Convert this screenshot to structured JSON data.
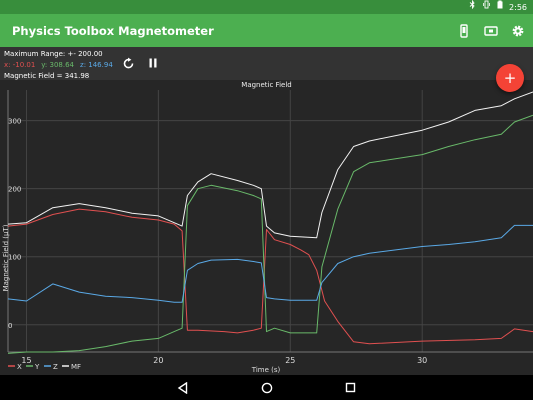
{
  "status": {
    "time": "2:56"
  },
  "appbar": {
    "title": "Physics Toolbox Magnetometer"
  },
  "info": {
    "max_range": "Maximum Range: +- 200.00",
    "x_reading": "x: -10.01",
    "y_reading": "y: 308.64",
    "z_reading": "z: 146.94",
    "magnetic_field": "Magnetic Field = 341.98"
  },
  "fab": {
    "label": "+"
  },
  "icons": {
    "status": [
      "bluetooth-icon",
      "vibrate-icon",
      "battery-icon"
    ],
    "appbar": [
      "phone-icon",
      "camera-icon",
      "settings-gear-icon"
    ],
    "controls": [
      "reset-icon",
      "pause-icon"
    ],
    "nav": [
      "back-icon",
      "home-icon",
      "recents-icon"
    ]
  },
  "colors": {
    "accent": "#4caf50",
    "status_bar": "#388e3c",
    "fab": "#f44336",
    "x": "#e05050",
    "y": "#69b96a",
    "z": "#5aa9e6",
    "mf": "#f2f2f2"
  },
  "chart_data": {
    "type": "line",
    "title": "Magnetic Field",
    "xlabel": "Time (s)",
    "ylabel": "Magnetic Field (µT)",
    "xlim": [
      14.3,
      34.2
    ],
    "ylim": [
      -40,
      345
    ],
    "x_ticks": [
      15,
      20,
      25,
      30
    ],
    "y_ticks": [
      0,
      100,
      200,
      300
    ],
    "grid": true,
    "legend_placement": "bottom-left",
    "legend": [
      "X",
      "Y",
      "Z",
      "MF"
    ],
    "series": [
      {
        "name": "X",
        "color": "#e05050",
        "x": [
          14.3,
          15,
          16,
          17,
          18,
          19,
          20,
          20.6,
          20.9,
          21.1,
          21.5,
          22.5,
          23,
          23.6,
          23.9,
          24.1,
          24.4,
          25,
          25.4,
          25.7,
          26,
          26.3,
          26.8,
          27.4,
          28,
          30,
          32,
          33,
          33.5,
          34.2
        ],
        "values": [
          145,
          148,
          162,
          170,
          166,
          158,
          154,
          148,
          138,
          -8,
          -8,
          -10,
          -12,
          -8,
          -5,
          140,
          125,
          118,
          110,
          103,
          80,
          35,
          5,
          -25,
          -28,
          -24,
          -22,
          -20,
          -6,
          -10
        ]
      },
      {
        "name": "Y",
        "color": "#69b96a",
        "x": [
          14.3,
          15,
          16,
          17,
          18,
          19,
          20,
          20.6,
          20.9,
          21.1,
          21.5,
          22,
          23,
          23.6,
          23.9,
          24.1,
          24.4,
          25,
          26,
          26.2,
          26.8,
          27.4,
          28,
          30,
          31,
          32,
          33,
          33.5,
          34.2
        ],
        "values": [
          -42,
          -40,
          -40,
          -38,
          -32,
          -24,
          -20,
          -10,
          -5,
          175,
          200,
          205,
          197,
          190,
          185,
          -10,
          -5,
          -12,
          -12,
          85,
          170,
          225,
          238,
          250,
          262,
          272,
          280,
          298,
          308
        ]
      },
      {
        "name": "Z",
        "color": "#5aa9e6",
        "x": [
          14.3,
          15,
          16,
          17,
          18,
          19,
          20,
          20.6,
          20.9,
          21.1,
          21.5,
          22,
          23,
          23.6,
          23.9,
          24.1,
          24.4,
          25,
          26,
          26.2,
          26.8,
          27.4,
          28,
          30,
          31,
          32,
          33,
          33.5,
          34.2
        ],
        "values": [
          38,
          35,
          60,
          48,
          42,
          40,
          36,
          33,
          33,
          80,
          90,
          95,
          96,
          93,
          91,
          40,
          38,
          36,
          36,
          62,
          90,
          100,
          105,
          115,
          118,
          122,
          128,
          146,
          146
        ]
      },
      {
        "name": "MF",
        "color": "#f2f2f2",
        "x": [
          14.3,
          15,
          16,
          17,
          18,
          19,
          20,
          20.6,
          20.9,
          21.1,
          21.5,
          22,
          23,
          23.6,
          23.9,
          24.1,
          24.4,
          25,
          26,
          26.2,
          26.8,
          27.4,
          28,
          30,
          31,
          32,
          33,
          33.5,
          34.2
        ],
        "values": [
          148,
          150,
          172,
          178,
          172,
          164,
          160,
          150,
          145,
          190,
          210,
          222,
          212,
          205,
          200,
          145,
          135,
          130,
          128,
          165,
          228,
          262,
          270,
          286,
          298,
          315,
          322,
          332,
          342
        ]
      }
    ]
  }
}
